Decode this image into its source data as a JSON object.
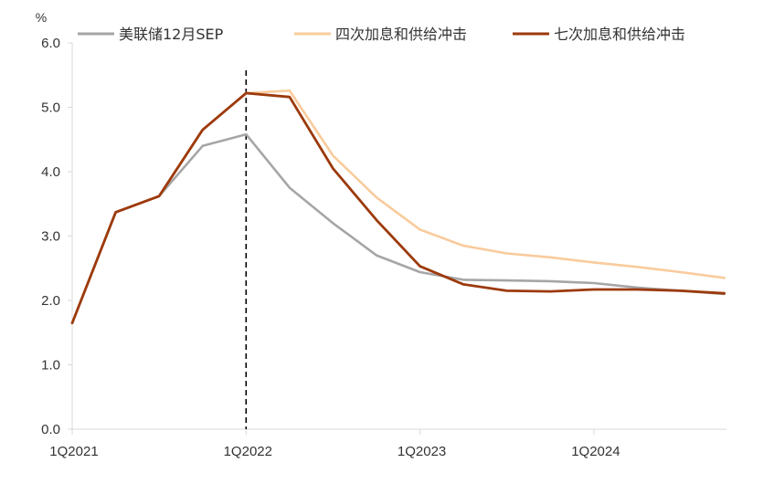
{
  "chart_data": {
    "type": "line",
    "y_unit": "%",
    "ylim": [
      0,
      6
    ],
    "y_ticks": [
      "0.0",
      "1.0",
      "2.0",
      "3.0",
      "4.0",
      "5.0",
      "6.0"
    ],
    "x": [
      "1Q2021",
      "2Q2021",
      "3Q2021",
      "4Q2021",
      "1Q2022",
      "2Q2022",
      "3Q2022",
      "4Q2022",
      "1Q2023",
      "2Q2023",
      "3Q2023",
      "4Q2023",
      "1Q2024",
      "2Q2024",
      "3Q2024",
      "4Q2024"
    ],
    "x_tick_labels": [
      "1Q2021",
      "1Q2022",
      "1Q2023",
      "1Q2024"
    ],
    "vline_at": "1Q2022",
    "grid": false,
    "legend_position": "top",
    "series": [
      {
        "name": "美联储12月SEP",
        "color": "#a6a6a6",
        "values": [
          1.65,
          3.37,
          3.62,
          4.4,
          4.58,
          3.75,
          3.2,
          2.7,
          2.44,
          2.32,
          2.31,
          2.3,
          2.27,
          2.2,
          2.15,
          2.1
        ]
      },
      {
        "name": "四次加息和供给冲击",
        "color": "#f9cb9c",
        "values": [
          1.65,
          3.37,
          3.62,
          4.65,
          5.22,
          5.26,
          4.25,
          3.6,
          3.1,
          2.85,
          2.73,
          2.67,
          2.59,
          2.52,
          2.44,
          2.35
        ]
      },
      {
        "name": "七次加息和供给冲击",
        "color": "#9c3a0c",
        "values": [
          1.65,
          3.37,
          3.62,
          4.65,
          5.22,
          5.16,
          4.05,
          3.25,
          2.53,
          2.25,
          2.15,
          2.14,
          2.17,
          2.17,
          2.15,
          2.11
        ]
      }
    ]
  }
}
